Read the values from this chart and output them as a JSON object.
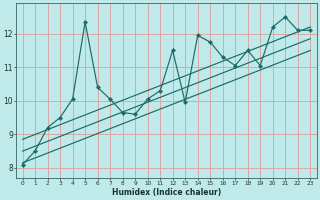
{
  "title": "",
  "xlabel": "Humidex (Indice chaleur)",
  "bg_color": "#c0eaea",
  "plot_bg_color": "#c0eaea",
  "grid_color": "#d8a8a8",
  "line_color": "#1a6b6b",
  "xlim": [
    -0.5,
    23.5
  ],
  "ylim": [
    7.7,
    12.9
  ],
  "xticks": [
    0,
    1,
    2,
    3,
    4,
    5,
    6,
    7,
    8,
    9,
    10,
    11,
    12,
    13,
    14,
    15,
    16,
    17,
    18,
    19,
    20,
    21,
    22,
    23
  ],
  "yticks": [
    8,
    9,
    10,
    11,
    12
  ],
  "scatter_x": [
    0,
    1,
    2,
    3,
    4,
    5,
    6,
    7,
    8,
    9,
    10,
    11,
    12,
    13,
    14,
    15,
    16,
    17,
    18,
    19,
    20,
    21,
    22,
    23
  ],
  "scatter_y": [
    8.1,
    8.5,
    9.2,
    9.5,
    10.05,
    12.35,
    10.4,
    10.05,
    9.65,
    9.6,
    10.05,
    10.3,
    11.5,
    9.95,
    11.95,
    11.75,
    11.3,
    11.05,
    11.5,
    11.05,
    12.2,
    12.5,
    12.1,
    12.1
  ],
  "reg_lines": [
    {
      "x": [
        0,
        23
      ],
      "y": [
        8.15,
        11.5
      ]
    },
    {
      "x": [
        0,
        23
      ],
      "y": [
        8.5,
        11.85
      ]
    },
    {
      "x": [
        0,
        23
      ],
      "y": [
        8.85,
        12.2
      ]
    }
  ]
}
